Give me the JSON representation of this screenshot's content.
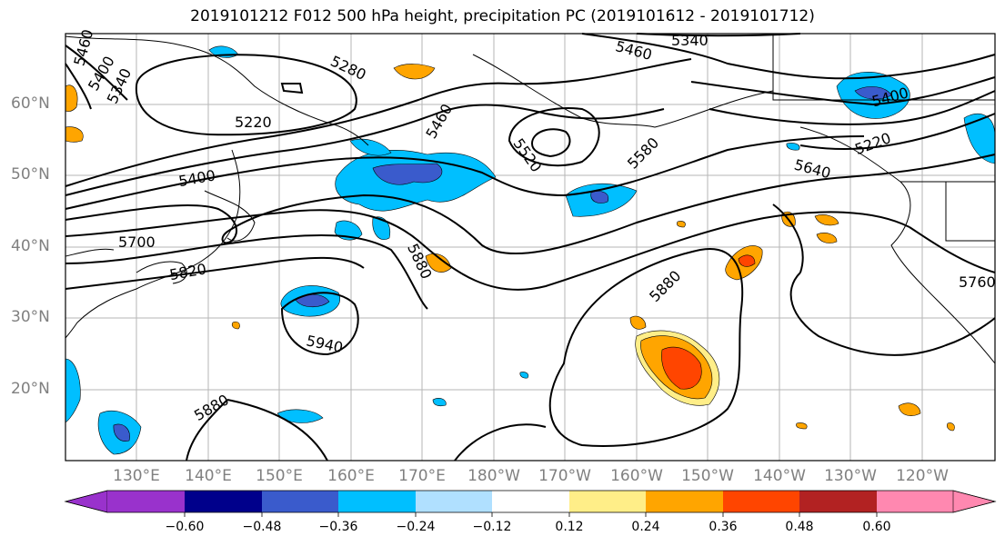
{
  "title": "2019101212 F012 500 hPa height, precipitation PC (2019101612 - 2019101712)",
  "map": {
    "lat_labels": [
      "60°N",
      "50°N",
      "40°N",
      "30°N",
      "20°N"
    ],
    "lon_labels": [
      "130°E",
      "140°E",
      "150°E",
      "160°E",
      "170°E",
      "180°W",
      "170°W",
      "160°W",
      "150°W",
      "140°W",
      "130°W",
      "120°W"
    ],
    "contour_labels": [
      "5460",
      "5400",
      "5340",
      "5280",
      "5220",
      "5460",
      "5340",
      "5460",
      "5520",
      "5580",
      "5400",
      "5220",
      "5640",
      "5400",
      "5700",
      "5820",
      "5880",
      "5940",
      "5880",
      "5880",
      "5760"
    ]
  },
  "colorbar": {
    "tick_labels": [
      "−0.60",
      "−0.48",
      "−0.36",
      "−0.24",
      "−0.12",
      "0.12",
      "0.24",
      "0.36",
      "0.48",
      "0.60"
    ],
    "colors": [
      "#9932cc",
      "#00008b",
      "#3a5bcc",
      "#00bfff",
      "#b0e0ff",
      "#ffffff",
      "#ffee88",
      "#ffa500",
      "#ff4500",
      "#b22222",
      "#ff88b0"
    ]
  }
}
